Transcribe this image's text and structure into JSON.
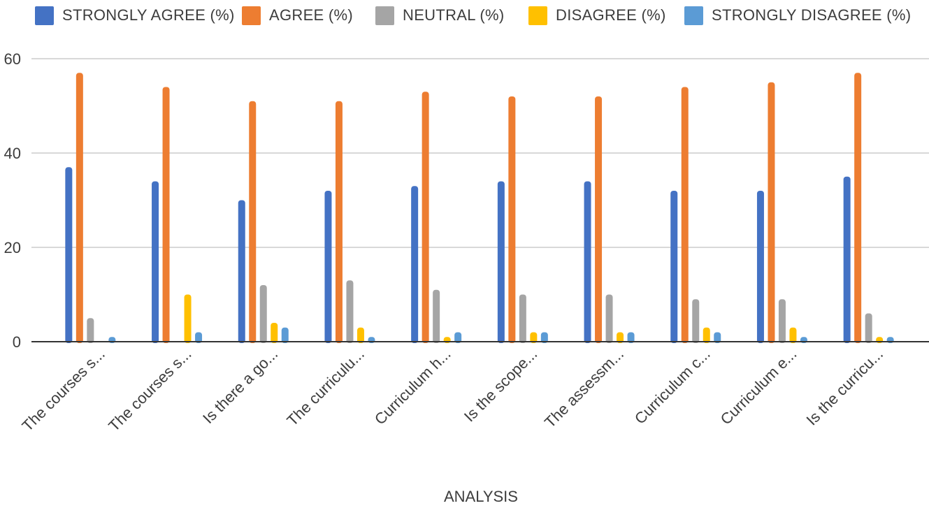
{
  "chart_data": {
    "type": "bar",
    "xlabel": "ANALYSIS",
    "ylabel": "",
    "ylim": [
      0,
      60
    ],
    "yticks": [
      0,
      20,
      40,
      60
    ],
    "grid": true,
    "legend_position": "top",
    "categories": [
      "The courses s...",
      "The courses s...",
      "Is there a go...",
      "The curriculu...",
      "Curriculum h...",
      "Is the scope...",
      "The assessm...",
      "Curriculum c...",
      "Curriculum e...",
      "Is the curricu..."
    ],
    "series": [
      {
        "name": "STRONGLY AGREE (%)",
        "color": "#4472c4",
        "values": [
          37,
          34,
          30,
          32,
          33,
          34,
          34,
          32,
          32,
          35
        ]
      },
      {
        "name": "AGREE (%)",
        "color": "#ed7d31",
        "values": [
          57,
          54,
          51,
          51,
          53,
          52,
          52,
          54,
          55,
          57
        ]
      },
      {
        "name": "NEUTRAL (%)",
        "color": "#a5a5a5",
        "values": [
          5,
          0,
          12,
          13,
          11,
          10,
          10,
          9,
          9,
          6
        ]
      },
      {
        "name": "DISAGREE (%)",
        "color": "#ffc000",
        "values": [
          0,
          10,
          4,
          3,
          1,
          2,
          2,
          3,
          3,
          1
        ]
      },
      {
        "name": "STRONGLY DISAGREE (%)",
        "color": "#5b9bd5",
        "values": [
          1,
          2,
          3,
          1,
          2,
          2,
          2,
          2,
          1,
          1
        ]
      }
    ]
  }
}
